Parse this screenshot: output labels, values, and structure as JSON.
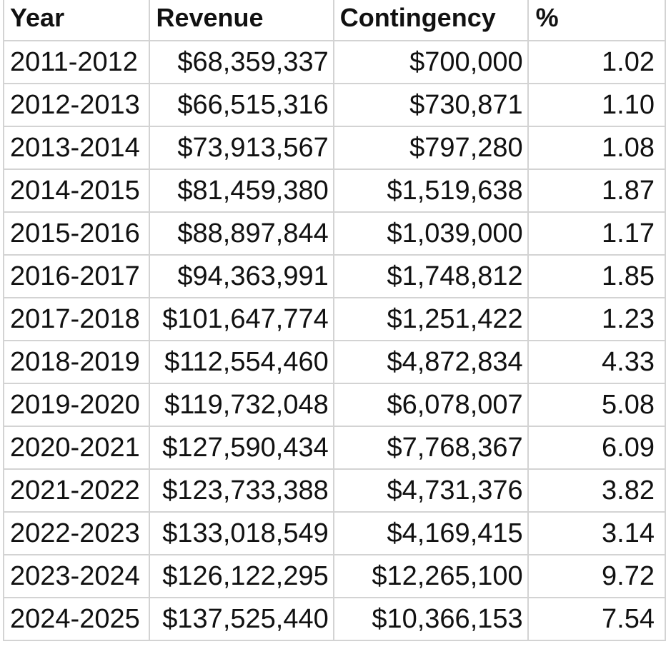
{
  "table": {
    "headers": [
      "Year",
      "Revenue",
      "Contingency",
      "%"
    ],
    "rows": [
      [
        "2011-2012",
        "$68,359,337",
        "$700,000",
        "1.02"
      ],
      [
        "2012-2013",
        "$66,515,316",
        "$730,871",
        "1.10"
      ],
      [
        "2013-2014",
        "$73,913,567",
        "$797,280",
        "1.08"
      ],
      [
        "2014-2015",
        "$81,459,380",
        "$1,519,638",
        "1.87"
      ],
      [
        "2015-2016",
        "$88,897,844",
        "$1,039,000",
        "1.17"
      ],
      [
        "2016-2017",
        "$94,363,991",
        "$1,748,812",
        "1.85"
      ],
      [
        "2017-2018",
        "$101,647,774",
        "$1,251,422",
        "1.23"
      ],
      [
        "2018-2019",
        "$112,554,460",
        "$4,872,834",
        "4.33"
      ],
      [
        "2019-2020",
        "$119,732,048",
        "$6,078,007",
        "5.08"
      ],
      [
        "2020-2021",
        "$127,590,434",
        "$7,768,367",
        "6.09"
      ],
      [
        "2021-2022",
        "$123,733,388",
        "$4,731,376",
        "3.82"
      ],
      [
        "2022-2023",
        "$133,018,549",
        "$4,169,415",
        "3.14"
      ],
      [
        "2023-2024",
        "$126,122,295",
        "$12,265,100",
        "9.72"
      ],
      [
        "2024-2025",
        "$137,525,440",
        "$10,366,153",
        "7.54"
      ]
    ]
  }
}
